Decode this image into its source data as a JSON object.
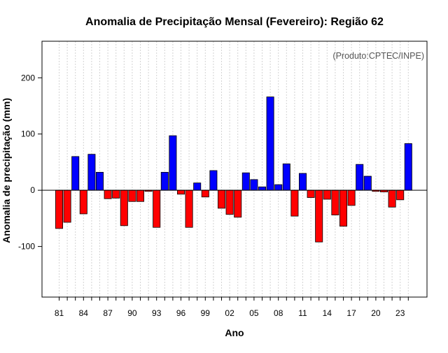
{
  "chart_data": {
    "type": "bar",
    "title": "Anomalia de Precipitação Mensal (Fevereiro): Região 62",
    "xlabel": "Ano",
    "ylabel": "Anomalia de precipitação (mm)",
    "annotation": "(Produto:CPTEC/INPE)",
    "ylim": [
      -190,
      265
    ],
    "yticks": [
      -100,
      0,
      100,
      200
    ],
    "years": [
      1981,
      1982,
      1983,
      1984,
      1985,
      1986,
      1987,
      1988,
      1989,
      1990,
      1991,
      1992,
      1993,
      1994,
      1995,
      1996,
      1997,
      1998,
      1999,
      2000,
      2001,
      2002,
      2003,
      2004,
      2005,
      2006,
      2007,
      2008,
      2009,
      2010,
      2011,
      2012,
      2013,
      2014,
      2015,
      2016,
      2017,
      2018,
      2019,
      2020,
      2021,
      2022,
      2023,
      2024
    ],
    "xtick_labels": [
      "81",
      "84",
      "87",
      "90",
      "93",
      "96",
      "99",
      "02",
      "05",
      "08",
      "11",
      "14",
      "17",
      "20",
      "23"
    ],
    "values": [
      -68,
      -57,
      60,
      -42,
      64,
      32,
      -15,
      -14,
      -63,
      -20,
      -20,
      -2,
      -66,
      32,
      97,
      -7,
      -66,
      13,
      -12,
      35,
      -32,
      -43,
      -48,
      31,
      19,
      6,
      166,
      10,
      47,
      -46,
      30,
      -13,
      -92,
      -16,
      -44,
      -64,
      -27,
      46,
      25,
      -2,
      -3,
      -30,
      -17,
      83
    ],
    "positive_color": "#0000ff",
    "negative_color": "#ff0000",
    "grid": true
  }
}
